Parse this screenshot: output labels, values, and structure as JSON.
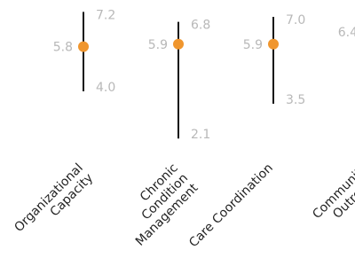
{
  "chart_data": {
    "type": "range-dot",
    "categories": [
      [
        "Organizational",
        "Capacity"
      ],
      [
        "Chronic",
        "Condition",
        "Management"
      ],
      [
        "Care Coordination"
      ],
      [
        "Community",
        "Outreach"
      ]
    ],
    "values": [
      5.8,
      5.9,
      5.9,
      6.4
    ],
    "value_labels": [
      "5.8",
      "5.9",
      "5.9",
      "6.4"
    ],
    "low": [
      4.0,
      2.1,
      3.5,
      null
    ],
    "low_labels": [
      "4.0",
      "2.1",
      "3.5",
      null
    ],
    "high": [
      7.2,
      6.8,
      7.0,
      null
    ],
    "high_labels": [
      "7.2",
      "6.8",
      "7.0",
      null
    ],
    "ylim": [
      1.5,
      7.5
    ],
    "color": "#f0962e",
    "line_color": "#111111"
  }
}
